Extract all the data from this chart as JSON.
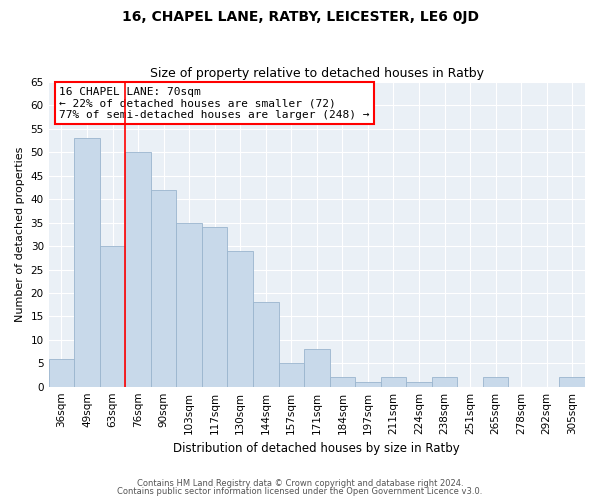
{
  "title": "16, CHAPEL LANE, RATBY, LEICESTER, LE6 0JD",
  "subtitle": "Size of property relative to detached houses in Ratby",
  "xlabel": "Distribution of detached houses by size in Ratby",
  "ylabel": "Number of detached properties",
  "bar_color": "#c8d9ea",
  "bar_edge_color": "#9ab5ce",
  "bg_color": "#eaf0f6",
  "grid_color": "#ffffff",
  "bins": [
    "36sqm",
    "49sqm",
    "63sqm",
    "76sqm",
    "90sqm",
    "103sqm",
    "117sqm",
    "130sqm",
    "144sqm",
    "157sqm",
    "171sqm",
    "184sqm",
    "197sqm",
    "211sqm",
    "224sqm",
    "238sqm",
    "251sqm",
    "265sqm",
    "278sqm",
    "292sqm",
    "305sqm"
  ],
  "values": [
    6,
    53,
    30,
    50,
    42,
    35,
    34,
    29,
    18,
    5,
    8,
    2,
    1,
    2,
    1,
    2,
    0,
    2,
    0,
    0,
    2
  ],
  "red_line_bin_index": 2.5,
  "annotation_box": {
    "text_line1": "16 CHAPEL LANE: 70sqm",
    "text_line2": "← 22% of detached houses are smaller (72)",
    "text_line3": "77% of semi-detached houses are larger (248) →"
  },
  "ylim": [
    0,
    65
  ],
  "yticks": [
    0,
    5,
    10,
    15,
    20,
    25,
    30,
    35,
    40,
    45,
    50,
    55,
    60,
    65
  ],
  "footer_line1": "Contains HM Land Registry data © Crown copyright and database right 2024.",
  "footer_line2": "Contains public sector information licensed under the Open Government Licence v3.0."
}
